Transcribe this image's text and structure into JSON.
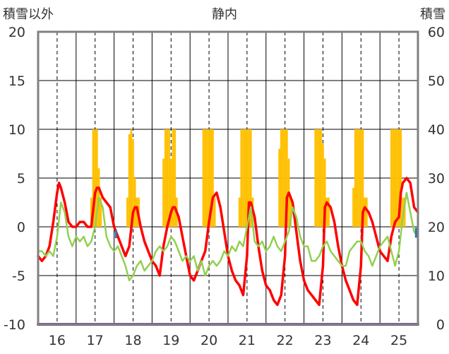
{
  "chart_data": {
    "type": "line",
    "title": "静内",
    "left_axis_title": "積雪以外",
    "right_axis_title": "積雪",
    "ylim_left": [
      -10,
      20
    ],
    "ylim_right": [
      0,
      60
    ],
    "yticks_left": [
      "20",
      "15",
      "10",
      "5",
      "0",
      "-5",
      "-10"
    ],
    "yticks_right": [
      "60",
      "50",
      "40",
      "30",
      "20",
      "10",
      "0"
    ],
    "xlim": [
      15.5,
      25.5
    ],
    "xticks": [
      16,
      17,
      18,
      19,
      20,
      21,
      22,
      23,
      24,
      25
    ],
    "xtick_labels": [
      "16",
      "17",
      "18",
      "19",
      "20",
      "21",
      "22",
      "23",
      "24",
      "25"
    ],
    "grid": {
      "vertical_dashed_at_ticks": true,
      "vertical_solid_at_midpoints": true,
      "horizontal_solid": true
    },
    "colors": {
      "temperature": "#ff0000",
      "dew_point": "#92d050",
      "precipitation": "#ffc000",
      "snow_depth": "#7030a0",
      "small_marks": "#2e75b6",
      "frame": "#808080",
      "grid": "#000000"
    },
    "series": [
      {
        "kind": "line",
        "axis": "left",
        "color": "#ff0000",
        "x": [
          15.5,
          15.6,
          15.7,
          15.8,
          15.9,
          16.0,
          16.05,
          16.1,
          16.2,
          16.3,
          16.4,
          16.5,
          16.6,
          16.7,
          16.8,
          16.9,
          17.0,
          17.05,
          17.1,
          17.2,
          17.3,
          17.4,
          17.5,
          17.6,
          17.7,
          17.8,
          17.9,
          18.0,
          18.05,
          18.1,
          18.2,
          18.3,
          18.4,
          18.5,
          18.6,
          18.7,
          18.8,
          18.9,
          19.0,
          19.05,
          19.1,
          19.2,
          19.3,
          19.4,
          19.5,
          19.6,
          19.7,
          19.8,
          19.9,
          20.0,
          20.1,
          20.2,
          20.3,
          20.4,
          20.5,
          20.6,
          20.7,
          20.8,
          20.9,
          21.0,
          21.05,
          21.1,
          21.2,
          21.3,
          21.4,
          21.5,
          21.6,
          21.7,
          21.8,
          21.9,
          22.0,
          22.05,
          22.1,
          22.2,
          22.3,
          22.4,
          22.5,
          22.6,
          22.7,
          22.8,
          22.9,
          23.0,
          23.05,
          23.1,
          23.2,
          23.3,
          23.4,
          23.5,
          23.6,
          23.7,
          23.8,
          23.9,
          24.0,
          24.05,
          24.1,
          24.2,
          24.3,
          24.4,
          24.5,
          24.6,
          24.7,
          24.8,
          24.9,
          25.0,
          25.05,
          25.1,
          25.2,
          25.3,
          25.4,
          25.5
        ],
        "y": [
          -3.0,
          -3.5,
          -3.0,
          -2.0,
          0.5,
          3.5,
          4.5,
          4.0,
          2.5,
          0.5,
          0.0,
          0.0,
          0.5,
          0.5,
          0.0,
          0.0,
          3.5,
          4.0,
          4.0,
          3.0,
          2.5,
          2.0,
          0.0,
          -1.0,
          -2.0,
          -3.0,
          -2.0,
          1.5,
          2.0,
          2.0,
          0.0,
          -1.5,
          -2.5,
          -3.5,
          -4.0,
          -5.0,
          -2.0,
          0.0,
          1.5,
          2.0,
          2.0,
          1.0,
          -1.0,
          -3.0,
          -5.0,
          -5.5,
          -4.5,
          -3.5,
          -2.5,
          0.5,
          3.0,
          3.5,
          2.0,
          -0.5,
          -3.0,
          -4.5,
          -5.5,
          -6.0,
          -7.0,
          -3.0,
          2.5,
          2.5,
          1.0,
          -2.0,
          -4.5,
          -6.0,
          -6.5,
          -7.5,
          -8.0,
          -7.0,
          -3.0,
          3.0,
          3.5,
          2.5,
          -0.5,
          -3.5,
          -5.5,
          -6.5,
          -7.0,
          -7.5,
          -8.0,
          -4.0,
          2.0,
          2.5,
          2.0,
          0.5,
          -2.0,
          -4.0,
          -5.5,
          -6.5,
          -7.5,
          -8.0,
          -4.0,
          1.5,
          2.0,
          1.5,
          0.5,
          -1.0,
          -2.5,
          -3.0,
          -3.5,
          -1.0,
          0.5,
          1.0,
          3.5,
          4.5,
          5.0,
          4.5,
          2.0,
          1.5
        ]
      },
      {
        "kind": "line",
        "axis": "left",
        "color": "#92d050",
        "x": [
          15.5,
          15.6,
          15.7,
          15.8,
          15.9,
          16.0,
          16.1,
          16.2,
          16.3,
          16.4,
          16.5,
          16.6,
          16.7,
          16.8,
          16.9,
          17.0,
          17.1,
          17.2,
          17.3,
          17.4,
          17.5,
          17.6,
          17.7,
          17.8,
          17.9,
          18.0,
          18.1,
          18.2,
          18.3,
          18.4,
          18.5,
          18.6,
          18.7,
          18.8,
          18.9,
          19.0,
          19.1,
          19.2,
          19.3,
          19.4,
          19.5,
          19.6,
          19.7,
          19.8,
          19.9,
          20.0,
          20.1,
          20.2,
          20.3,
          20.4,
          20.5,
          20.6,
          20.7,
          20.8,
          20.9,
          21.0,
          21.1,
          21.2,
          21.3,
          21.4,
          21.5,
          21.6,
          21.7,
          21.8,
          21.9,
          22.0,
          22.1,
          22.2,
          22.3,
          22.4,
          22.5,
          22.6,
          22.7,
          22.8,
          22.9,
          23.0,
          23.1,
          23.2,
          23.3,
          23.4,
          23.5,
          23.6,
          23.7,
          23.8,
          23.9,
          24.0,
          24.1,
          24.2,
          24.3,
          24.4,
          24.5,
          24.6,
          24.7,
          24.8,
          24.9,
          25.0,
          25.1,
          25.2,
          25.3,
          25.4,
          25.5
        ],
        "y": [
          -2.5,
          -2.5,
          -3.0,
          -2.5,
          -3.0,
          -1.0,
          2.5,
          1.5,
          -1.0,
          -2.0,
          -1.0,
          -1.5,
          -1.0,
          -2.0,
          -1.5,
          0.0,
          3.0,
          2.0,
          -1.0,
          -2.0,
          -2.5,
          -2.0,
          -3.0,
          -4.0,
          -5.5,
          -5.0,
          -4.0,
          -3.5,
          -4.5,
          -4.0,
          -3.5,
          -2.5,
          -2.0,
          -2.5,
          -2.0,
          -1.0,
          -1.5,
          -2.5,
          -3.5,
          -3.0,
          -3.5,
          -3.0,
          -4.5,
          -3.5,
          -5.0,
          -4.0,
          -3.5,
          -4.0,
          -3.5,
          -2.5,
          -3.0,
          -2.0,
          -2.5,
          -1.5,
          -2.0,
          0.0,
          2.0,
          -1.5,
          -2.0,
          -1.5,
          -2.5,
          -2.0,
          -1.0,
          -2.0,
          -2.5,
          -1.5,
          -0.5,
          2.0,
          1.0,
          -1.0,
          -2.0,
          -2.0,
          -3.5,
          -3.5,
          -3.0,
          -2.0,
          -1.5,
          -2.5,
          -3.0,
          -3.5,
          -4.0,
          -4.0,
          -2.5,
          -2.0,
          -1.5,
          -1.5,
          -2.5,
          -3.0,
          -4.0,
          -3.0,
          -2.0,
          -1.5,
          -1.0,
          -2.5,
          -4.0,
          -2.5,
          1.0,
          3.5,
          1.5,
          -0.5,
          -1.0
        ]
      },
      {
        "kind": "bar",
        "axis": "left",
        "color": "#ffc000",
        "base": 0,
        "x": [
          16.9,
          16.95,
          17.0,
          17.05,
          17.1,
          17.15,
          17.85,
          17.9,
          17.95,
          18.0,
          18.05,
          18.1,
          18.15,
          18.8,
          18.85,
          18.9,
          18.95,
          19.0,
          19.05,
          19.1,
          19.15,
          19.85,
          19.9,
          19.95,
          20.0,
          20.05,
          20.1,
          20.15,
          20.8,
          20.85,
          20.9,
          20.95,
          21.0,
          21.05,
          21.1,
          21.15,
          21.85,
          21.9,
          21.95,
          22.0,
          22.05,
          22.1,
          22.15,
          22.8,
          22.85,
          22.9,
          22.95,
          23.0,
          23.05,
          23.1,
          23.15,
          23.8,
          23.85,
          23.9,
          23.95,
          24.0,
          24.05,
          24.1,
          24.15,
          24.8,
          24.85,
          24.9,
          24.95,
          25.0,
          25.05,
          25.1,
          25.15
        ],
        "y": [
          3.0,
          10.0,
          10.0,
          10.0,
          6.0,
          3.0,
          3.0,
          9.5,
          10.0,
          9.0,
          5.0,
          3.0,
          3.0,
          7.0,
          10.0,
          10.0,
          10.0,
          7.0,
          10.0,
          10.0,
          3.0,
          10.0,
          10.0,
          10.0,
          10.0,
          10.0,
          10.0,
          3.0,
          3.0,
          10.0,
          10.0,
          10.0,
          10.0,
          10.0,
          10.0,
          3.0,
          8.0,
          10.0,
          10.0,
          10.0,
          10.0,
          7.0,
          3.0,
          10.0,
          10.0,
          10.0,
          10.0,
          8.5,
          7.0,
          3.0,
          3.0,
          4.0,
          10.0,
          10.0,
          10.0,
          10.0,
          10.0,
          3.0,
          3.0,
          10.0,
          10.0,
          10.0,
          10.0,
          10.0,
          10.0,
          3.0,
          3.0
        ]
      },
      {
        "kind": "line",
        "axis": "right",
        "color": "#7030a0",
        "x": [
          15.5,
          25.5
        ],
        "y": [
          0,
          0
        ]
      }
    ]
  }
}
